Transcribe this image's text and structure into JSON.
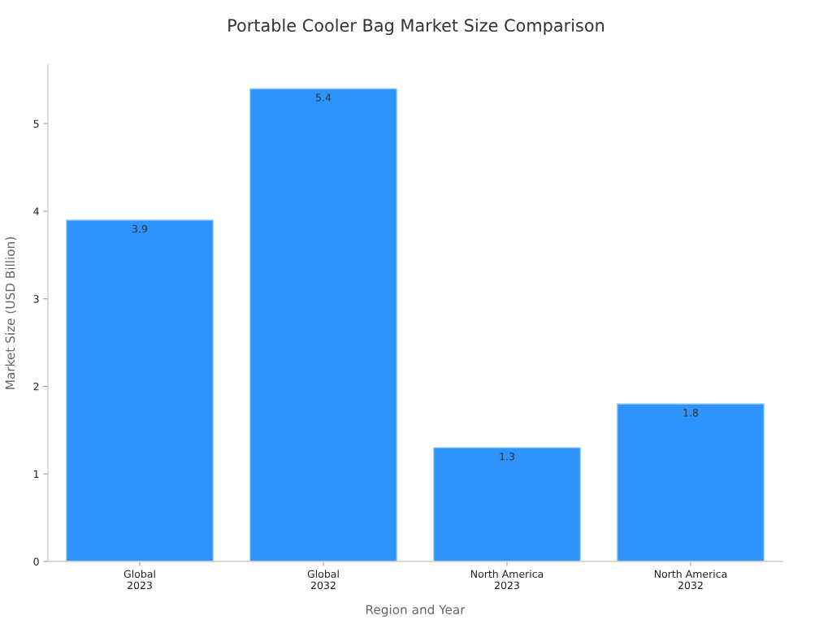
{
  "chart_data": {
    "type": "bar",
    "title": "Portable Cooler Bag Market Size Comparison",
    "xlabel": "Region and Year",
    "ylabel": "Market Size (USD Billion)",
    "categories": [
      "Global\n2023",
      "Global\n2032",
      "North America\n2023",
      "North America\n2032"
    ],
    "values": [
      3.9,
      5.4,
      1.3,
      1.8
    ],
    "color": "#2e93fa",
    "ylim": [
      0,
      5.67
    ],
    "yticks": [
      0,
      1,
      2,
      3,
      4,
      5
    ],
    "grid": false,
    "data_labels": true
  }
}
